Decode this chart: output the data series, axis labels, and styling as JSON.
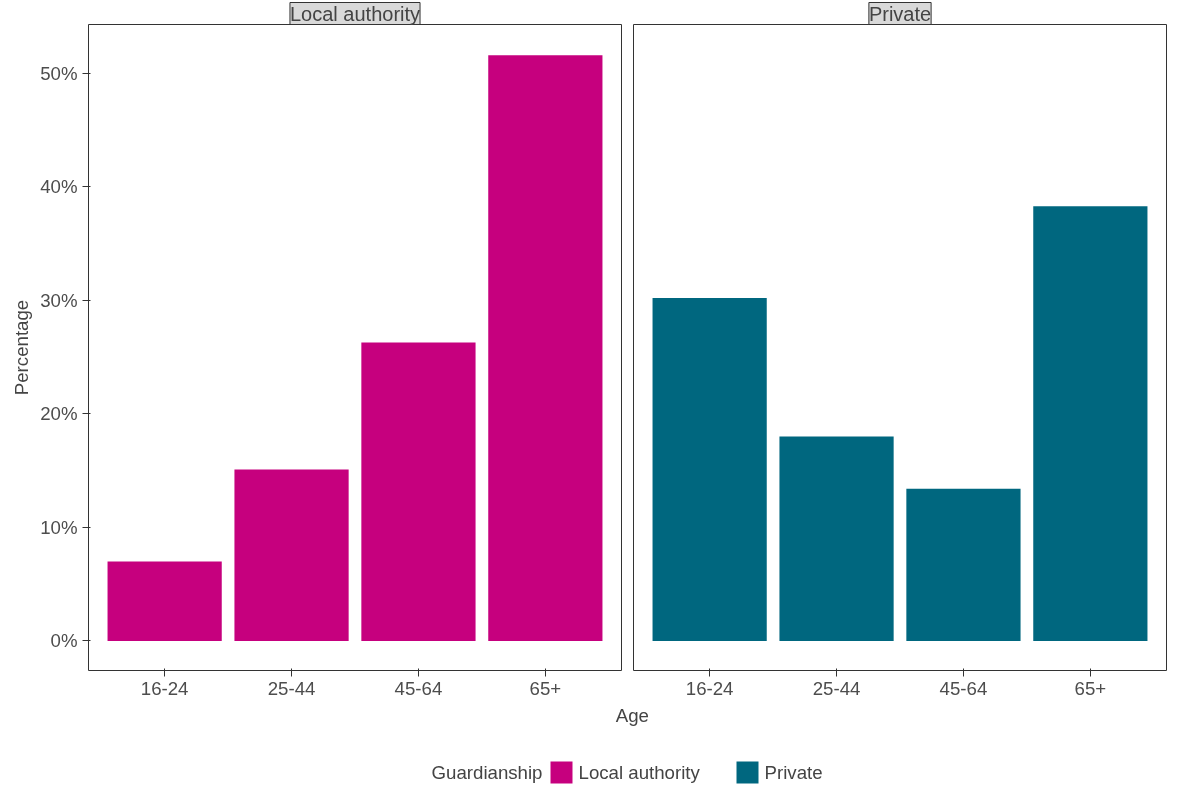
{
  "chart_data": [
    {
      "type": "bar",
      "title": "Local authority",
      "categories": [
        "16-24",
        "25-44",
        "45-64",
        "65+"
      ],
      "xlabel": "Age",
      "ylabel": "Percentage",
      "legend_title": "Guardianship",
      "legend": "bottom",
      "grid": false,
      "series": [
        {
          "name": "Local authority",
          "color": "#c6007e",
          "values": [
            7.0,
            15.1,
            26.3,
            51.6
          ]
        }
      ],
      "ylim": [
        -2.6,
        54.3
      ],
      "yticks": [
        {
          "value": 0,
          "label": "0%"
        },
        {
          "value": 10,
          "label": "10%"
        },
        {
          "value": 20,
          "label": "20%"
        },
        {
          "value": 30,
          "label": "30%"
        },
        {
          "value": 40,
          "label": "40%"
        },
        {
          "value": 50,
          "label": "50%"
        }
      ]
    },
    {
      "type": "bar",
      "title": "Private",
      "categories": [
        "16-24",
        "25-44",
        "45-64",
        "65+"
      ],
      "legend": "bottom",
      "grid": false,
      "tick_labels": "x",
      "series": [
        {
          "name": "Private",
          "color": "#00677f",
          "values": [
            30.2,
            18.0,
            13.4,
            38.3
          ]
        }
      ],
      "ylim": [
        -2.6,
        54.3
      ]
    }
  ]
}
